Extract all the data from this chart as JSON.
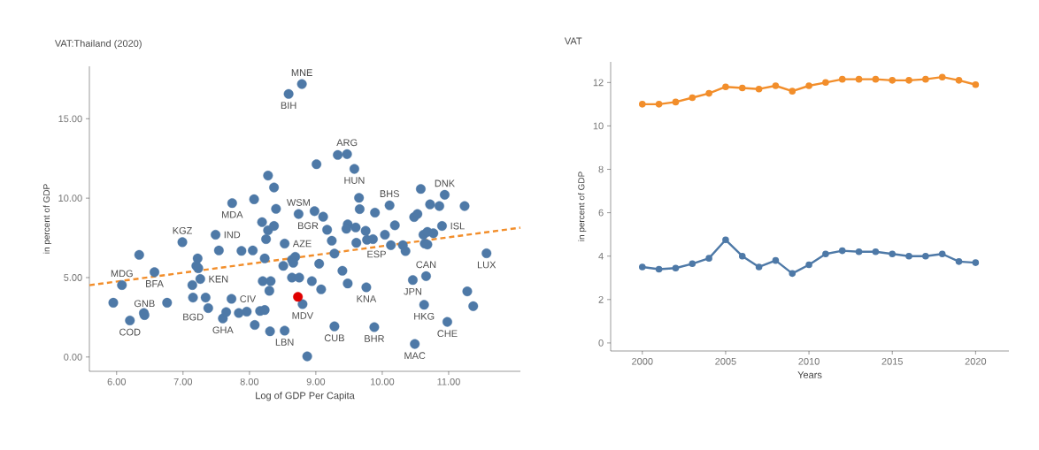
{
  "chart_data": [
    {
      "type": "scatter",
      "title": "VAT:Thailand (2020)",
      "xlabel": "Log of GDP Per Capita",
      "ylabel": "in percent of GDP",
      "marker": "circle",
      "xlim": [
        5.59,
        12.08
      ],
      "ylim": [
        -0.9,
        18.3
      ],
      "xticks": [
        {
          "value": 6,
          "label": "6.00"
        },
        {
          "value": 7,
          "label": "7.00"
        },
        {
          "value": 8,
          "label": "8.00"
        },
        {
          "value": 9,
          "label": "9.00"
        },
        {
          "value": 10,
          "label": "10.00"
        },
        {
          "value": 11,
          "label": "11.00"
        }
      ],
      "yticks": [
        {
          "value": 0,
          "label": "0.00"
        },
        {
          "value": 5,
          "label": "5.00"
        },
        {
          "value": 10,
          "label": "10.00"
        },
        {
          "value": 15,
          "label": "15.00"
        }
      ],
      "series": [
        {
          "color": "#4e79a7",
          "x": [
            8.79,
            8.59,
            9.33,
            9.47,
            9.01,
            9.58,
            10.58,
            10.94,
            10.72,
            10.86,
            11.24,
            10.11,
            9.65,
            9.66,
            9.89,
            8.98,
            9.11,
            8.74,
            10.48,
            10.53,
            8.28,
            8.37,
            7.74,
            8.07,
            8.4,
            6.99,
            6.34,
            6.08,
            5.95,
            6.2,
            6.41,
            6.42,
            6.57,
            6.76,
            7.49,
            7.54,
            7.88,
            8.05,
            7.22,
            7.2,
            7.23,
            7.26,
            7.14,
            7.15,
            7.34,
            7.38,
            7.6,
            7.65,
            7.73,
            7.84,
            7.96,
            8.08,
            8.16,
            8.23,
            8.2,
            8.32,
            8.3,
            8.31,
            8.53,
            8.19,
            8.28,
            8.37,
            8.25,
            8.53,
            8.23,
            8.51,
            8.64,
            8.64,
            8.69,
            9.17,
            9.24,
            9.48,
            9.46,
            9.6,
            9.75,
            9.77,
            9.86,
            9.61,
            10.04,
            10.19,
            10.13,
            10.31,
            10.35,
            10.62,
            10.68,
            10.77,
            10.64,
            10.68,
            10.9,
            11.57,
            9.28,
            8.66,
            9.05,
            9.4,
            9.48,
            9.76,
            8.94,
            9.08,
            8.75,
            8.8,
            9.28,
            8.87,
            9.88,
            10.49,
            10.63,
            10.46,
            10.66,
            11.28,
            11.37,
            10.98
          ],
          "values": [
            17.18,
            16.56,
            12.72,
            12.77,
            12.14,
            11.84,
            10.58,
            10.21,
            9.61,
            9.5,
            9.5,
            9.55,
            10.02,
            9.31,
            9.09,
            9.18,
            8.83,
            9.0,
            8.81,
            9.0,
            11.42,
            10.67,
            9.69,
            9.93,
            9.33,
            7.23,
            6.43,
            4.53,
            3.42,
            2.3,
            2.77,
            2.64,
            5.34,
            3.42,
            7.7,
            6.71,
            6.68,
            6.71,
            6.21,
            5.74,
            5.59,
            4.91,
            4.53,
            3.74,
            3.74,
            3.08,
            2.43,
            2.83,
            3.66,
            2.77,
            2.86,
            2.02,
            2.9,
            2.96,
            4.78,
            4.78,
            4.17,
            1.62,
            1.66,
            8.49,
            7.98,
            8.25,
            7.42,
            7.14,
            6.21,
            5.74,
            6.12,
            5.0,
            6.31,
            8.01,
            7.32,
            8.35,
            8.07,
            8.16,
            7.94,
            7.38,
            7.42,
            7.19,
            7.7,
            8.29,
            7.04,
            7.04,
            6.67,
            7.7,
            7.88,
            7.79,
            7.14,
            7.08,
            8.25,
            6.53,
            6.51,
            5.93,
            5.87,
            5.43,
            4.63,
            4.39,
            4.78,
            4.26,
            5.0,
            3.33,
            1.93,
            0.04,
            1.88,
            0.82,
            3.29,
            4.85,
            5.09,
            4.13,
            3.2,
            2.21
          ]
        },
        {
          "type": "line",
          "color": "#f28e2b",
          "marker": "none",
          "line_style": "dashed",
          "x": [
            5.59,
            12.08
          ],
          "values": [
            4.52,
            8.14
          ]
        },
        {
          "color": "#e00000",
          "x": [
            8.73
          ],
          "values": [
            3.79
          ]
        }
      ],
      "annotations": [
        {
          "text": "MNE",
          "x": 8.79,
          "y": 17.18
        },
        {
          "text": "BIH",
          "x": 8.59,
          "y": 16.56
        },
        {
          "text": "ARG",
          "x": 9.47,
          "y": 12.77
        },
        {
          "text": "HUN",
          "x": 9.58,
          "y": 11.84
        },
        {
          "text": "DNK",
          "x": 10.94,
          "y": 10.21
        },
        {
          "text": "BHS",
          "x": 10.11,
          "y": 9.55
        },
        {
          "text": "BGR",
          "x": 9.11,
          "y": 8.83
        },
        {
          "text": "WSM",
          "x": 8.74,
          "y": 9.0
        },
        {
          "text": "MDA",
          "x": 7.74,
          "y": 9.69
        },
        {
          "text": "KGZ",
          "x": 6.99,
          "y": 7.23
        },
        {
          "text": "IND",
          "x": 7.49,
          "y": 7.7
        },
        {
          "text": "AZE",
          "x": 8.53,
          "y": 7.14
        },
        {
          "text": "ISL",
          "x": 10.9,
          "y": 8.25
        },
        {
          "text": "MDG",
          "x": 6.08,
          "y": 4.53
        },
        {
          "text": "BFA",
          "x": 6.57,
          "y": 5.34
        },
        {
          "text": "ESP",
          "x": 10.13,
          "y": 7.04
        },
        {
          "text": "KEN",
          "x": 7.26,
          "y": 4.91
        },
        {
          "text": "CIV",
          "x": 7.73,
          "y": 3.66
        },
        {
          "text": "LUX",
          "x": 11.57,
          "y": 6.53
        },
        {
          "text": "JPN",
          "x": 10.46,
          "y": 4.85
        },
        {
          "text": "CAN",
          "x": 10.66,
          "y": 5.09
        },
        {
          "text": "MDV",
          "x": 8.8,
          "y": 3.33
        },
        {
          "text": "KNA",
          "x": 9.76,
          "y": 4.39
        },
        {
          "text": "BGD",
          "x": 7.38,
          "y": 3.08
        },
        {
          "text": "GHA",
          "x": 7.6,
          "y": 2.43
        },
        {
          "text": "COD",
          "x": 6.2,
          "y": 2.3
        },
        {
          "text": "GNB",
          "x": 6.42,
          "y": 2.64
        },
        {
          "text": "HKG",
          "x": 10.63,
          "y": 3.29
        },
        {
          "text": "CHE",
          "x": 10.98,
          "y": 2.21
        },
        {
          "text": "CUB",
          "x": 9.28,
          "y": 1.93
        },
        {
          "text": "LBN",
          "x": 8.53,
          "y": 1.66
        },
        {
          "text": "BHR",
          "x": 9.88,
          "y": 1.88
        },
        {
          "text": "MAC",
          "x": 10.49,
          "y": 0.82
        }
      ]
    },
    {
      "type": "line",
      "title": "VAT",
      "xlabel": "Years",
      "ylabel": "in percent of GDP",
      "marker": "circle",
      "line_style": "solid",
      "x": [
        2000,
        2001,
        2002,
        2003,
        2004,
        2005,
        2006,
        2007,
        2008,
        2009,
        2010,
        2011,
        2012,
        2013,
        2014,
        2015,
        2016,
        2017,
        2018,
        2019,
        2020
      ],
      "xlim": [
        1998.1,
        2022
      ],
      "ylim": [
        -0.37,
        12.95
      ],
      "xticks": [
        2000,
        2005,
        2010,
        2015,
        2020
      ],
      "yticks": [
        0,
        2,
        4,
        6,
        8,
        10,
        12
      ],
      "series": [
        {
          "color": "#f28e2b",
          "values": [
            11.0,
            11.0,
            11.1,
            11.3,
            11.5,
            11.8,
            11.75,
            11.7,
            11.85,
            11.6,
            11.85,
            12.0,
            12.15,
            12.15,
            12.15,
            12.1,
            12.1,
            12.15,
            12.25,
            12.1,
            11.9
          ]
        },
        {
          "color": "#4e79a7",
          "values": [
            3.5,
            3.4,
            3.45,
            3.65,
            3.9,
            4.75,
            4.0,
            3.5,
            3.8,
            3.2,
            3.6,
            4.1,
            4.25,
            4.2,
            4.2,
            4.1,
            4.0,
            4.0,
            4.1,
            3.75,
            3.7
          ]
        }
      ]
    }
  ]
}
